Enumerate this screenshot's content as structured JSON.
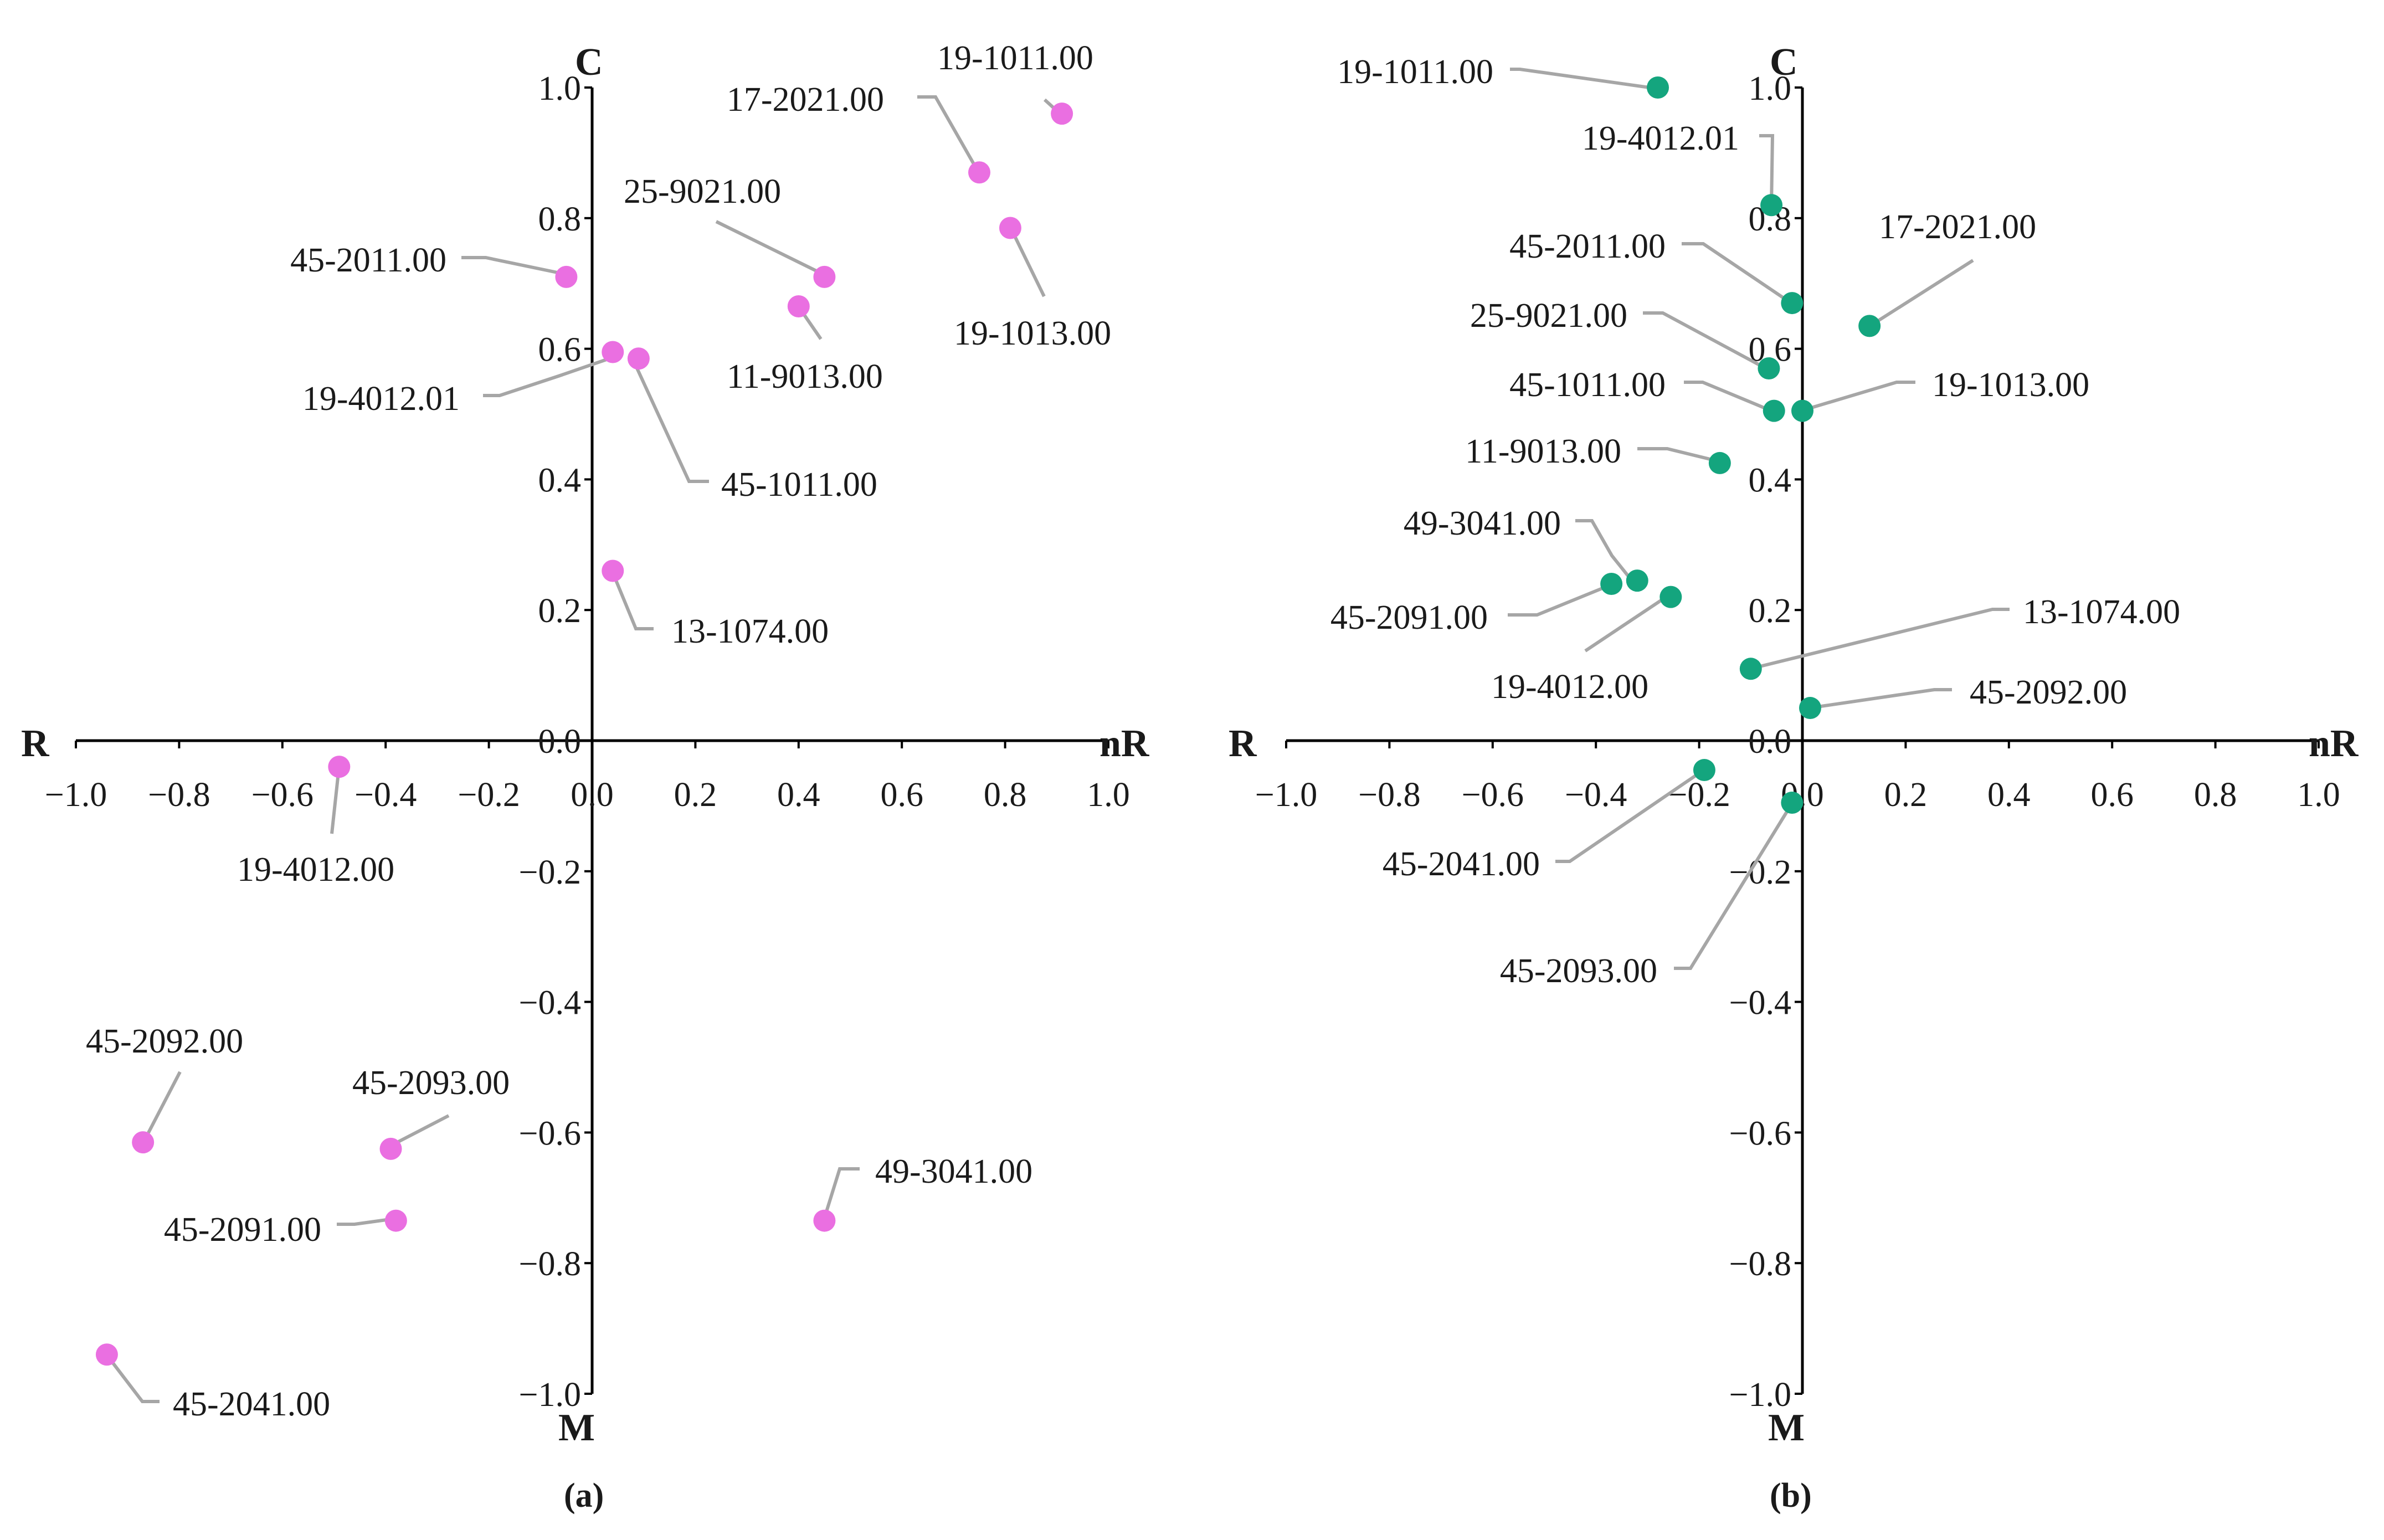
{
  "colors": {
    "panel_a_marker": "#ea6fe1",
    "panel_b_marker": "#14a57e",
    "leader_line": "#a6a6a6",
    "axis": "#000000"
  },
  "axis_ticks": {
    "x": [
      "−1.0",
      "−0.8",
      "−0.6",
      "−0.4",
      "−0.2",
      "0.0",
      "0.2",
      "0.4",
      "0.6",
      "0.8",
      "1.0"
    ],
    "y": [
      "−1.0",
      "−0.8",
      "−0.6",
      "−0.4",
      "−0.2",
      "0.0",
      "0.2",
      "0.4",
      "0.6",
      "0.8",
      "1.0"
    ]
  },
  "chart_data": [
    {
      "type": "scatter",
      "panel_label": "(a)",
      "title": "",
      "axis_letters": {
        "top": "C",
        "bottom": "M",
        "left": "R",
        "right": "nR"
      },
      "xlim": [
        -1.0,
        1.0
      ],
      "ylim": [
        -1.0,
        1.0
      ],
      "grid": false,
      "marker_color": "#ea6fe1",
      "points": [
        {
          "label": "19-1011.00",
          "x": 0.91,
          "y": 0.96
        },
        {
          "label": "17-2021.00",
          "x": 0.75,
          "y": 0.87
        },
        {
          "label": "19-1013.00",
          "x": 0.81,
          "y": 0.785
        },
        {
          "label": "25-9021.00",
          "x": 0.45,
          "y": 0.71
        },
        {
          "label": "11-9013.00",
          "x": 0.4,
          "y": 0.665
        },
        {
          "label": "45-2011.00",
          "x": -0.05,
          "y": 0.71
        },
        {
          "label": "19-4012.01",
          "x": 0.04,
          "y": 0.595
        },
        {
          "label": "45-1011.00",
          "x": 0.09,
          "y": 0.585
        },
        {
          "label": "13-1074.00",
          "x": 0.04,
          "y": 0.26
        },
        {
          "label": "19-4012.00",
          "x": -0.49,
          "y": -0.04
        },
        {
          "label": "45-2092.00",
          "x": -0.87,
          "y": -0.615
        },
        {
          "label": "45-2093.00",
          "x": -0.39,
          "y": -0.625
        },
        {
          "label": "45-2091.00",
          "x": -0.38,
          "y": -0.735
        },
        {
          "label": "49-3041.00",
          "x": 0.45,
          "y": -0.735
        },
        {
          "label": "45-2041.00",
          "x": -0.94,
          "y": -0.94
        }
      ]
    },
    {
      "type": "scatter",
      "panel_label": "(b)",
      "title": "",
      "axis_letters": {
        "top": "C",
        "bottom": "M",
        "left": "R",
        "right": "nR"
      },
      "xlim": [
        -1.0,
        1.0
      ],
      "ylim": [
        -1.0,
        1.0
      ],
      "grid": false,
      "marker_color": "#14a57e",
      "points": [
        {
          "label": "19-1011.00",
          "x": -0.28,
          "y": 1.0
        },
        {
          "label": "19-4012.01",
          "x": -0.06,
          "y": 0.82
        },
        {
          "label": "17-2021.00",
          "x": 0.13,
          "y": 0.635
        },
        {
          "label": "45-2011.00",
          "x": -0.02,
          "y": 0.67
        },
        {
          "label": "25-9021.00",
          "x": -0.065,
          "y": 0.57
        },
        {
          "label": "45-1011.00",
          "x": -0.055,
          "y": 0.505
        },
        {
          "label": "19-1013.00",
          "x": 0.0,
          "y": 0.505
        },
        {
          "label": "11-9013.00",
          "x": -0.16,
          "y": 0.425
        },
        {
          "label": "49-3041.00",
          "x": -0.32,
          "y": 0.245
        },
        {
          "label": "45-2091.00",
          "x": -0.37,
          "y": 0.24
        },
        {
          "label": "19-4012.00",
          "x": -0.255,
          "y": 0.22
        },
        {
          "label": "13-1074.00",
          "x": -0.1,
          "y": 0.11
        },
        {
          "label": "45-2092.00",
          "x": 0.015,
          "y": 0.05
        },
        {
          "label": "45-2041.00",
          "x": -0.19,
          "y": -0.045
        },
        {
          "label": "45-2093.00",
          "x": -0.02,
          "y": -0.095
        }
      ]
    }
  ]
}
